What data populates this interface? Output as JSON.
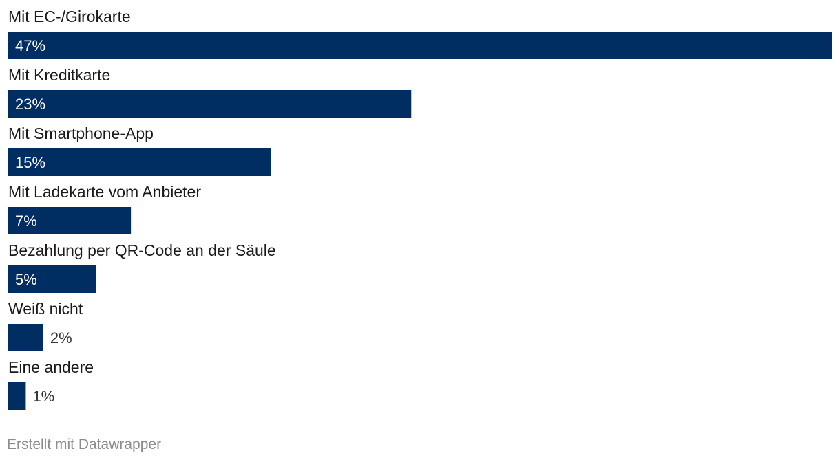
{
  "chart_data": {
    "type": "bar",
    "orientation": "horizontal",
    "categories": [
      "Mit EC-/Girokarte",
      "Mit Kreditkarte",
      "Mit Smartphone-App",
      "Mit Ladekarte vom Anbieter",
      "Bezahlung per QR-Code an der Säule",
      "Weiß nicht",
      "Eine andere"
    ],
    "values": [
      47,
      23,
      15,
      7,
      5,
      2,
      1
    ],
    "value_labels": [
      "47%",
      "23%",
      "15%",
      "7%",
      "5%",
      "2%",
      "1%"
    ],
    "xlim": [
      0,
      47
    ],
    "bar_color": "#002d62",
    "label_inside_color": "#ffffff",
    "label_outside_color": "#333333",
    "grid": false,
    "legend": "none"
  },
  "footer": {
    "credit": "Erstellt mit Datawrapper"
  }
}
